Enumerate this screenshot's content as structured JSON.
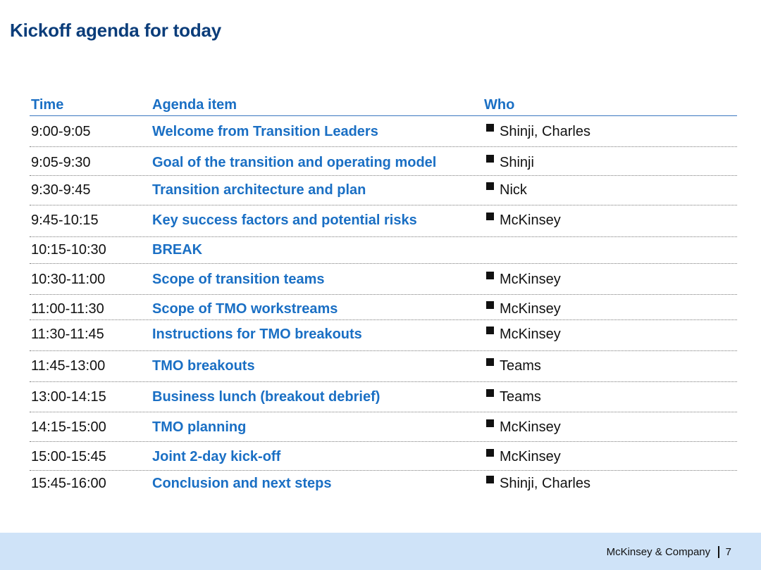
{
  "slide": {
    "title": "Kickoff agenda for today"
  },
  "agenda": {
    "headers": {
      "time": "Time",
      "item": "Agenda item",
      "who": "Who"
    },
    "rows": [
      {
        "time": "9:00-9:05",
        "item": "Welcome from Transition Leaders",
        "who": "Shinji, Charles"
      },
      {
        "time": "9:05-9:30",
        "item": "Goal of the transition and operating model",
        "who": "Shinji"
      },
      {
        "time": "9:30-9:45",
        "item": "Transition architecture and plan",
        "who": "Nick"
      },
      {
        "time": "9:45-10:15",
        "item": "Key success factors and potential risks",
        "who": "McKinsey"
      },
      {
        "time": "10:15-10:30",
        "item": "BREAK",
        "who": ""
      },
      {
        "time": "10:30-11:00",
        "item": "Scope of transition teams",
        "who": "McKinsey"
      },
      {
        "time": "11:00-11:30",
        "item": "Scope of TMO workstreams",
        "who": "McKinsey"
      },
      {
        "time": "11:30-11:45",
        "item": "Instructions for TMO breakouts",
        "who": "McKinsey"
      },
      {
        "time": "11:45-13:00",
        "item": "TMO breakouts",
        "who": "Teams"
      },
      {
        "time": "13:00-14:15",
        "item": "Business lunch (breakout debrief)",
        "who": "Teams"
      },
      {
        "time": "14:15-15:00",
        "item": "TMO planning",
        "who": "McKinsey"
      },
      {
        "time": "15:00-15:45",
        "item": "Joint 2-day kick-off",
        "who": "McKinsey"
      },
      {
        "time": "15:45-16:00",
        "item": "Conclusion and next steps",
        "who": "Shinji, Charles"
      }
    ]
  },
  "footer": {
    "company": "McKinsey & Company",
    "page_number": "7"
  },
  "colors": {
    "title": "#0b3d7a",
    "accent_blue": "#1a6fc4",
    "footer_band": "#cfe3f8"
  }
}
